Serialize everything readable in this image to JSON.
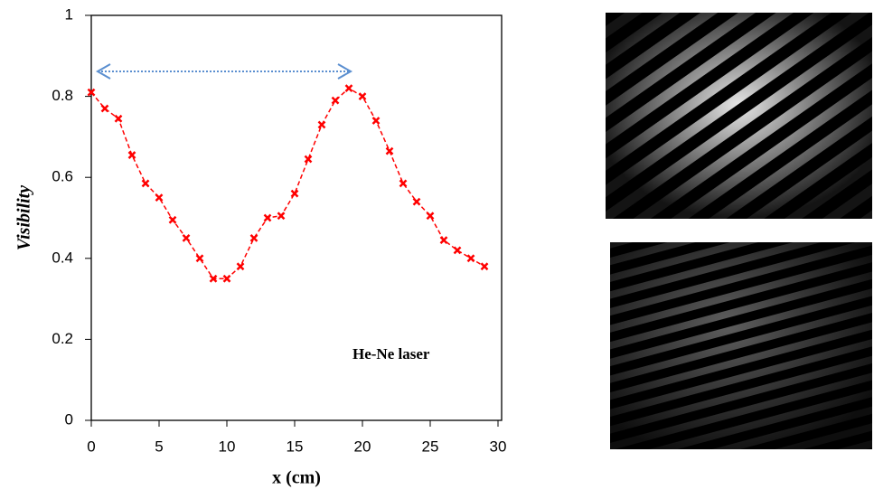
{
  "chart_data": {
    "type": "line",
    "x": [
      0,
      1,
      2,
      3,
      4,
      5,
      6,
      7,
      8,
      9,
      10,
      11,
      12,
      13,
      14,
      15,
      16,
      17,
      18,
      19,
      20,
      21,
      22,
      23,
      24,
      25,
      26,
      27,
      28,
      29
    ],
    "series": [
      {
        "name": "He-Ne laser",
        "color": "#ff0000",
        "values": [
          0.81,
          0.77,
          0.745,
          0.655,
          0.585,
          0.55,
          0.495,
          0.45,
          0.4,
          0.35,
          0.35,
          0.38,
          0.45,
          0.5,
          0.505,
          0.56,
          0.645,
          0.73,
          0.79,
          0.82,
          0.8,
          0.74,
          0.665,
          0.585,
          0.54,
          0.505,
          0.445,
          0.42,
          0.4,
          0.38
        ]
      }
    ],
    "xlabel": "x (cm)",
    "ylabel": "Visibility",
    "xlim": [
      0,
      30
    ],
    "xticks": [
      0,
      5,
      10,
      15,
      20,
      25,
      30
    ],
    "ylim": [
      0,
      1
    ],
    "yticks": [
      0,
      0.2,
      0.4,
      0.6,
      0.8,
      1
    ]
  }
}
